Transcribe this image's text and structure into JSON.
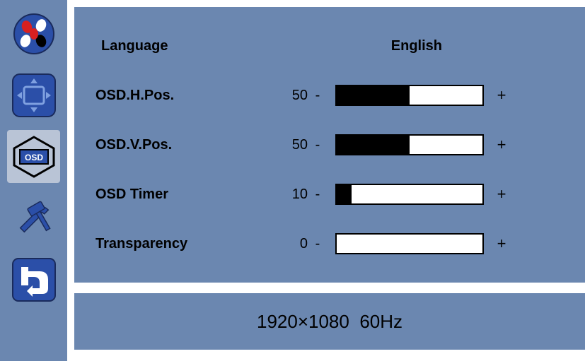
{
  "colors": {
    "panel_bg": "#6b87b0",
    "sidebar_bg": "#6b87b0",
    "selected_bg": "#b9c4d6",
    "text": "#000000",
    "bar_bg": "#ffffff",
    "bar_fill": "#000000",
    "bar_border": "#000000"
  },
  "sidebar": {
    "items": [
      {
        "name": "color-icon",
        "selected": false
      },
      {
        "name": "position-icon",
        "selected": false
      },
      {
        "name": "osd-icon",
        "selected": true
      },
      {
        "name": "tools-icon",
        "selected": false
      },
      {
        "name": "reset-icon",
        "selected": false
      }
    ]
  },
  "panel": {
    "language": {
      "label": "Language",
      "value": "English"
    },
    "osd_h_pos": {
      "label": "OSD.H.Pos.",
      "value": 50,
      "min": 0,
      "max": 100
    },
    "osd_v_pos": {
      "label": "OSD.V.Pos.",
      "value": 50,
      "min": 0,
      "max": 100
    },
    "osd_timer": {
      "label": "OSD Timer",
      "value": 10,
      "min": 0,
      "max": 100
    },
    "transparency": {
      "label": "Transparency",
      "value": 0,
      "min": 0,
      "max": 100
    }
  },
  "status": {
    "resolution": "1920×1080",
    "refresh": "60Hz"
  }
}
